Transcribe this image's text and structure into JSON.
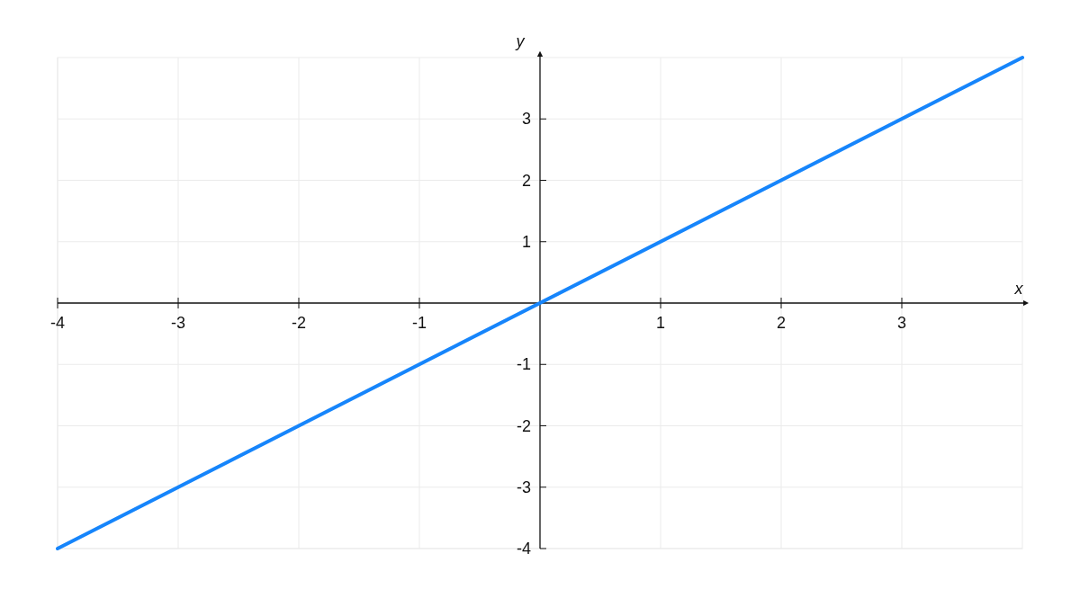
{
  "chart_data": {
    "type": "line",
    "xlabel": "x",
    "ylabel": "y",
    "x": [
      -4,
      4
    ],
    "series": [
      {
        "color": "#1685fb",
        "values": [
          -4,
          4
        ]
      }
    ],
    "xlim": [
      -4,
      4
    ],
    "ylim": [
      -4,
      4
    ],
    "xticks": [
      -4,
      -3,
      -2,
      -1,
      1,
      2,
      3
    ],
    "yticks": [
      -4,
      -3,
      -2,
      -1,
      1,
      2,
      3
    ],
    "grid": true,
    "marker": "none",
    "line_style": "solid"
  }
}
